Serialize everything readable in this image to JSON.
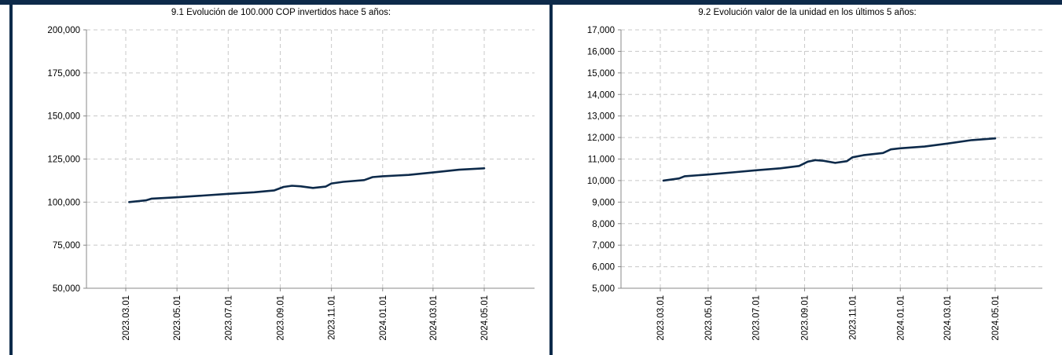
{
  "chart_data": [
    {
      "type": "line",
      "title": "9.1 Evolución de 100.000 COP invertidos hace 5 años:",
      "xlabel": "",
      "ylabel": "",
      "ylim": [
        50000,
        200000
      ],
      "yticks": [
        "200,000",
        "175,000",
        "150,000",
        "125,000",
        "100,000",
        "75,000",
        "50,000"
      ],
      "ytick_values": [
        200000,
        175000,
        150000,
        125000,
        100000,
        75000,
        50000
      ],
      "xticks": [
        "2023.03.01",
        "2023.05.01",
        "2023.07.01",
        "2023.09.01",
        "2023.11.01",
        "2024.01.01",
        "2024.03.01",
        "2024.05.01"
      ],
      "grid": true,
      "series": [
        {
          "x": [
            "2023.03.05",
            "2023.03.25",
            "2023.04.01",
            "2023.05.01",
            "2023.06.01",
            "2023.07.01",
            "2023.08.01",
            "2023.08.25",
            "2023.09.05",
            "2023.09.15",
            "2023.09.25",
            "2023.10.10",
            "2023.10.25",
            "2023.11.01",
            "2023.11.15",
            "2023.12.10",
            "2023.12.20",
            "2024.01.01",
            "2024.02.01",
            "2024.03.01",
            "2024.04.01",
            "2024.05.01"
          ],
          "values": [
            100000,
            101000,
            102000,
            102800,
            103800,
            104800,
            105700,
            106800,
            108800,
            109500,
            109200,
            108200,
            109000,
            110800,
            111800,
            112800,
            114500,
            115000,
            115800,
            117200,
            118800,
            119600
          ]
        }
      ]
    },
    {
      "type": "line",
      "title": "9.2 Evolución valor de la unidad en los últimos 5 años:",
      "xlabel": "",
      "ylabel": "",
      "ylim": [
        5000,
        17000
      ],
      "yticks": [
        "17,000",
        "16,000",
        "15,000",
        "14,000",
        "13,000",
        "12,000",
        "11,000",
        "10,000",
        "9,000",
        "8,000",
        "7,000",
        "6,000",
        "5,000"
      ],
      "ytick_values": [
        17000,
        16000,
        15000,
        14000,
        13000,
        12000,
        11000,
        10000,
        9000,
        8000,
        7000,
        6000,
        5000
      ],
      "xticks": [
        "2023.03.01",
        "2023.05.01",
        "2023.07.01",
        "2023.09.01",
        "2023.11.01",
        "2024.01.01",
        "2024.03.01",
        "2024.05.01"
      ],
      "grid": true,
      "series": [
        {
          "x": [
            "2023.03.05",
            "2023.03.25",
            "2023.04.01",
            "2023.05.01",
            "2023.06.01",
            "2023.07.01",
            "2023.08.01",
            "2023.08.25",
            "2023.09.05",
            "2023.09.15",
            "2023.09.25",
            "2023.10.10",
            "2023.10.25",
            "2023.11.01",
            "2023.11.15",
            "2023.12.10",
            "2023.12.20",
            "2024.01.01",
            "2024.02.01",
            "2024.03.01",
            "2024.04.01",
            "2024.05.01"
          ],
          "values": [
            10000,
            10100,
            10200,
            10280,
            10380,
            10480,
            10570,
            10680,
            10880,
            10950,
            10920,
            10820,
            10900,
            11080,
            11180,
            11280,
            11450,
            11500,
            11580,
            11720,
            11880,
            11960
          ]
        }
      ]
    }
  ]
}
